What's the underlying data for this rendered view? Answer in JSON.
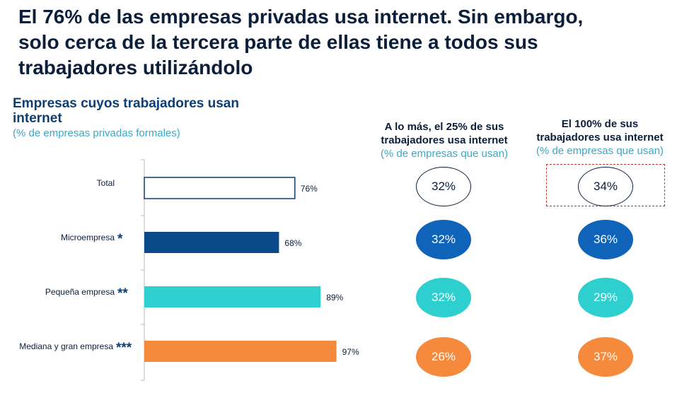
{
  "headline": [
    "El 76% de las empresas privadas usa internet. Sin embargo,",
    "solo cerca de la tercera parte de ellas tiene a todos sus",
    "trabajadores utilizándolo"
  ],
  "colors": {
    "total": "#ffffff",
    "total_border": "#0d3f73",
    "micro": "#0b4a8a",
    "pequena": "#2ecfcf",
    "mediana": "#f58a3c",
    "circle_micro": "#0f63b8",
    "highlight_dash": "#c0392b"
  },
  "columns": {
    "col1": {
      "heading": [
        "A lo más, el 25% de sus",
        "trabajadores usa internet"
      ],
      "subheading": "(% de empresas que usan)"
    },
    "col2": {
      "heading": [
        "El 100% de sus",
        "trabajadores usa internet"
      ],
      "subheading": "(% de empresas que usan)"
    }
  },
  "chart_data": {
    "type": "bar",
    "orientation": "horizontal",
    "title": [
      "Empresas cuyos trabajadores usan",
      "internet"
    ],
    "subtitle": "(% de empresas privadas formales)",
    "categories": [
      "Total",
      "Microempresa",
      "Pequeña empresa",
      "Mediana y gran empresa"
    ],
    "category_marks": [
      "",
      "*",
      "**",
      "***"
    ],
    "values": [
      76,
      68,
      89,
      97
    ],
    "value_labels": [
      "76%",
      "68%",
      "89%",
      "97%"
    ],
    "xlim": [
      0,
      100
    ],
    "grid": false,
    "side_columns": [
      {
        "values": [
          "32%",
          "32%",
          "32%",
          "26%"
        ]
      },
      {
        "values": [
          "34%",
          "36%",
          "29%",
          "37%"
        ]
      }
    ]
  }
}
